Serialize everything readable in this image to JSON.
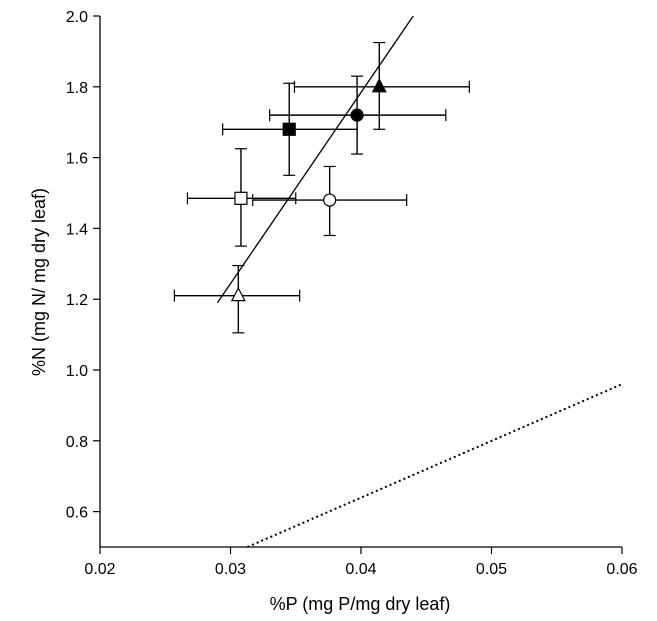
{
  "chart_data": {
    "type": "scatter",
    "xlabel": "%P (mg P/mg dry leaf)",
    "ylabel": "%N (mg N/ mg dry leaf)",
    "xlim": [
      0.02,
      0.06
    ],
    "ylim": [
      0.5,
      2.0
    ],
    "xticks": [
      0.02,
      0.03,
      0.04,
      0.05,
      0.06
    ],
    "xtick_labels": [
      "0.02",
      "0.03",
      "0.04",
      "0.05",
      "0.06"
    ],
    "yticks": [
      0.6,
      0.8,
      1.0,
      1.2,
      1.4,
      1.6,
      1.8,
      2.0
    ],
    "ytick_labels": [
      "0.6",
      "0.8",
      "1.0",
      "1.2",
      "1.4",
      "1.6",
      "1.8",
      "2.0"
    ],
    "grid": false,
    "points": [
      {
        "marker": "triangle",
        "fill": "filled",
        "x": 0.0414,
        "y": 1.8,
        "xerr": [
          0.0349,
          0.0483
        ],
        "yerr": [
          1.68,
          1.925
        ]
      },
      {
        "marker": "circle",
        "fill": "filled",
        "x": 0.0397,
        "y": 1.72,
        "xerr": [
          0.033,
          0.0465
        ],
        "yerr": [
          1.61,
          1.83
        ]
      },
      {
        "marker": "square",
        "fill": "filled",
        "x": 0.0345,
        "y": 1.68,
        "xerr": [
          0.0294,
          0.0397
        ],
        "yerr": [
          1.55,
          1.81
        ]
      },
      {
        "marker": "square",
        "fill": "open",
        "x": 0.0308,
        "y": 1.485,
        "xerr": [
          0.0267,
          0.035
        ],
        "yerr": [
          1.35,
          1.625
        ]
      },
      {
        "marker": "circle",
        "fill": "open",
        "x": 0.0376,
        "y": 1.48,
        "xerr": [
          0.0317,
          0.0435
        ],
        "yerr": [
          1.38,
          1.575
        ]
      },
      {
        "marker": "triangle",
        "fill": "open",
        "x": 0.0306,
        "y": 1.21,
        "xerr": [
          0.0257,
          0.0353
        ],
        "yerr": [
          1.105,
          1.295
        ]
      }
    ],
    "lines": [
      {
        "style": "solid",
        "x": [
          0.029,
          0.044
        ],
        "y": [
          1.19,
          2.0
        ]
      },
      {
        "style": "dotted",
        "x": [
          0.0313,
          0.06
        ],
        "y": [
          0.5,
          0.96
        ]
      }
    ]
  }
}
